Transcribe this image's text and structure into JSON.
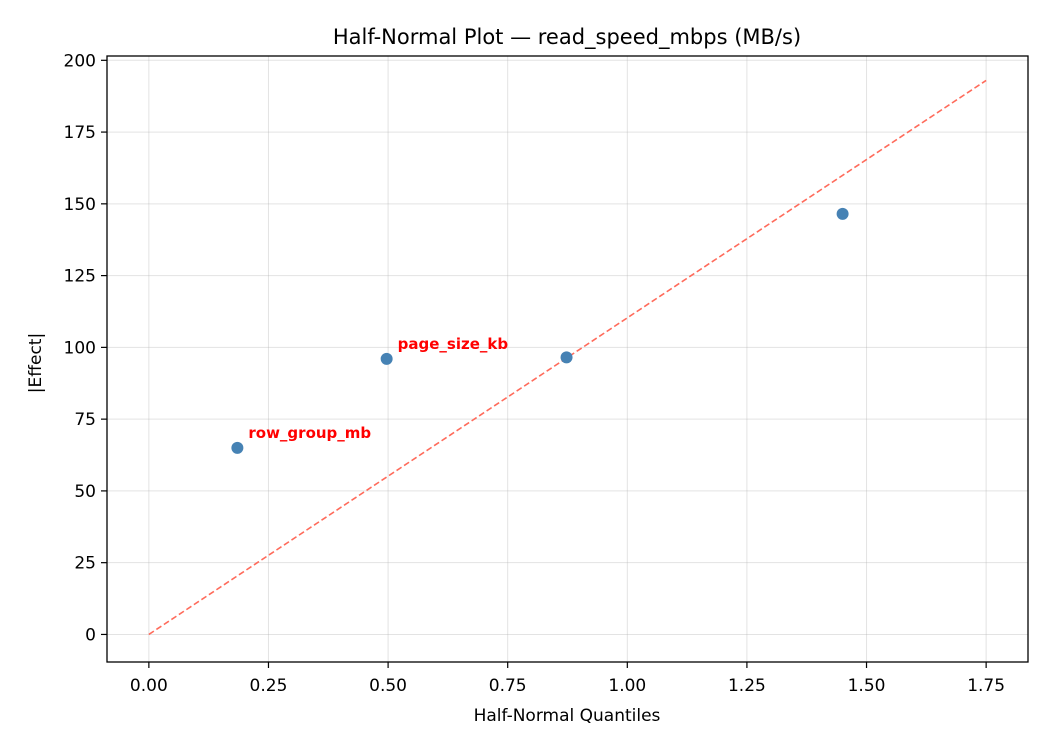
{
  "chart_data": {
    "type": "scatter",
    "title": "Half-Normal Plot — read_speed_mbps (MB/s)",
    "xlabel": "Half-Normal Quantiles",
    "ylabel": "|Effect|",
    "xlim": [
      -0.0875,
      1.8375
    ],
    "ylim": [
      -9.6,
      201.5
    ],
    "xticks": [
      0.0,
      0.25,
      0.5,
      0.75,
      1.0,
      1.25,
      1.5,
      1.75
    ],
    "xtick_labels": [
      "0.00",
      "0.25",
      "0.50",
      "0.75",
      "1.00",
      "1.25",
      "1.50",
      "1.75"
    ],
    "yticks": [
      0,
      25,
      50,
      75,
      100,
      125,
      150,
      175,
      200
    ],
    "ytick_labels": [
      "0",
      "25",
      "50",
      "75",
      "100",
      "125",
      "150",
      "175",
      "200"
    ],
    "grid": true,
    "point_color": "#4682b4",
    "points": [
      {
        "x": 0.185,
        "y": 65.0,
        "label": "row_group_mb"
      },
      {
        "x": 0.497,
        "y": 96.0,
        "label": "page_size_kb"
      },
      {
        "x": 0.873,
        "y": 96.5,
        "label": ""
      },
      {
        "x": 1.45,
        "y": 146.5,
        "label": ""
      }
    ],
    "annotation_color": "#ff0000",
    "reference_line": {
      "x": [
        0.0,
        1.75
      ],
      "y": [
        0.0,
        193.0
      ],
      "color": "#ff6b5b",
      "style": "dashed"
    }
  }
}
